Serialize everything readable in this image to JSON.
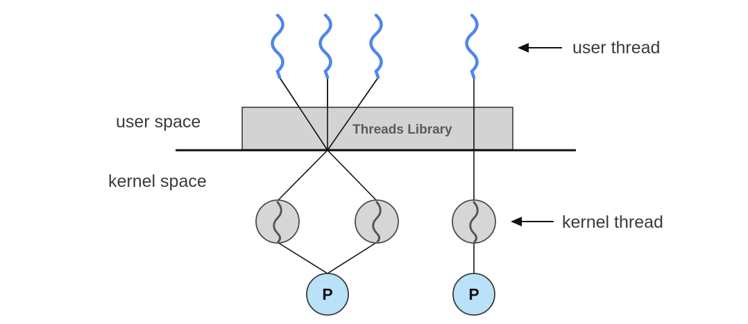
{
  "labels": {
    "user_thread": "user thread",
    "user_space": "user space",
    "kernel_space": "kernel space",
    "kernel_thread": "kernel thread",
    "threads_library": "Threads Library"
  },
  "processors": [
    {
      "label": "P"
    },
    {
      "label": "P"
    }
  ],
  "colors": {
    "user_thread": "#4f86ec",
    "library_box": "#d3d3d3",
    "kernel_thread": "#d6d6d6",
    "processor": "#b9e1f7",
    "line": "#111111"
  }
}
